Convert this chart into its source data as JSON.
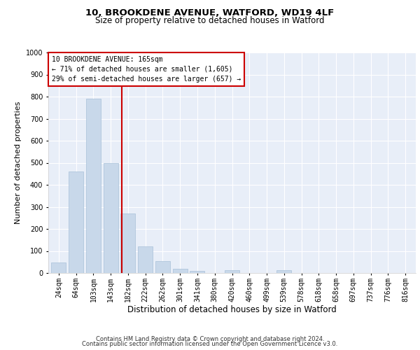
{
  "title1": "10, BROOKDENE AVENUE, WATFORD, WD19 4LF",
  "title2": "Size of property relative to detached houses in Watford",
  "xlabel": "Distribution of detached houses by size in Watford",
  "ylabel": "Number of detached properties",
  "footer1": "Contains HM Land Registry data © Crown copyright and database right 2024.",
  "footer2": "Contains public sector information licensed under the Open Government Licence v3.0.",
  "annotation_line1": "10 BROOKDENE AVENUE: 165sqm",
  "annotation_line2": "← 71% of detached houses are smaller (1,605)",
  "annotation_line3": "29% of semi-detached houses are larger (657) →",
  "property_size": 165,
  "bar_labels": [
    "24sqm",
    "64sqm",
    "103sqm",
    "143sqm",
    "182sqm",
    "222sqm",
    "262sqm",
    "301sqm",
    "341sqm",
    "380sqm",
    "420sqm",
    "460sqm",
    "499sqm",
    "539sqm",
    "578sqm",
    "618sqm",
    "658sqm",
    "697sqm",
    "737sqm",
    "776sqm",
    "816sqm"
  ],
  "bar_centers": [
    0,
    1,
    2,
    3,
    4,
    5,
    6,
    7,
    8,
    9,
    10,
    11,
    12,
    13,
    14,
    15,
    16,
    17,
    18,
    19,
    20
  ],
  "bar_values": [
    47,
    460,
    790,
    500,
    270,
    120,
    53,
    20,
    10,
    0,
    12,
    0,
    0,
    12,
    0,
    0,
    0,
    0,
    0,
    0,
    0
  ],
  "vline_pos": 3.65,
  "bar_color": "#c8d8ea",
  "bar_edge_color": "#a8c0d8",
  "vline_color": "#cc0000",
  "annotation_box_color": "#cc0000",
  "ylim": [
    0,
    1000
  ],
  "yticks": [
    0,
    100,
    200,
    300,
    400,
    500,
    600,
    700,
    800,
    900,
    1000
  ],
  "bg_color": "#e8eef8",
  "grid_color": "#ffffff",
  "fig_bg": "#ffffff",
  "title1_fontsize": 9.5,
  "title2_fontsize": 8.5,
  "ylabel_fontsize": 8,
  "xlabel_fontsize": 8.5,
  "tick_fontsize": 7,
  "annotation_fontsize": 7,
  "footer_fontsize": 6
}
